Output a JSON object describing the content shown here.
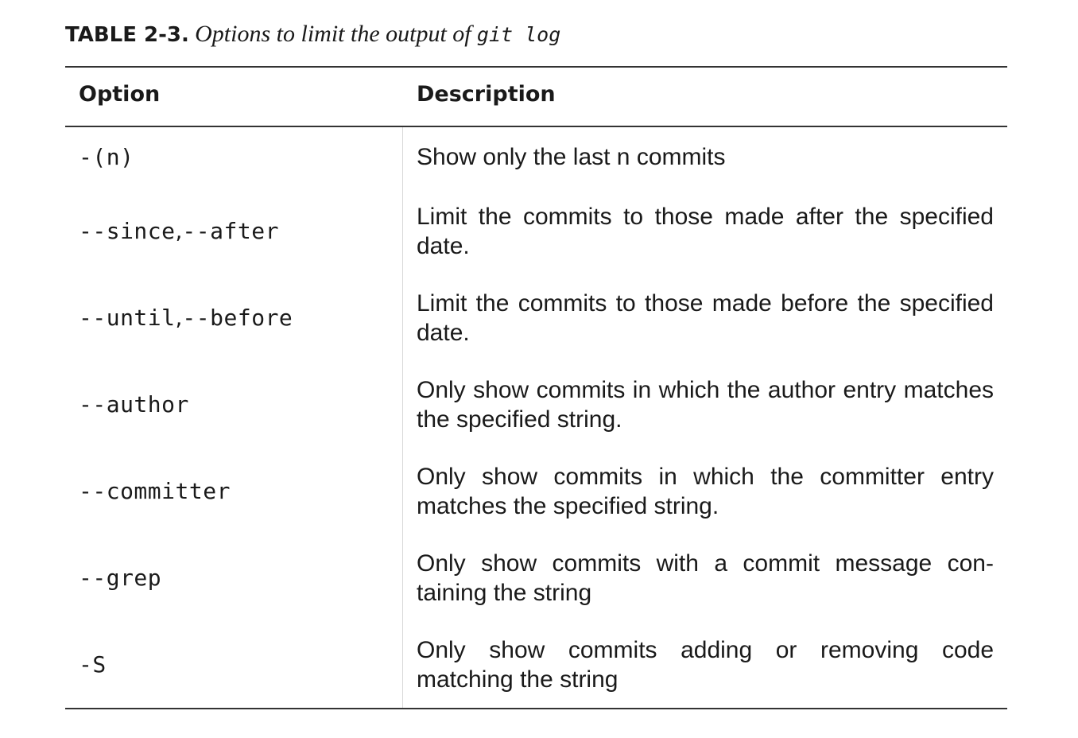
{
  "caption": {
    "label": "TABLE 2-3.",
    "title": "Options to limit the output of",
    "code": "git log"
  },
  "table": {
    "headers": {
      "option": "Option",
      "description": "Description"
    },
    "rows": [
      {
        "options": [
          "-(n)"
        ],
        "description": "Show only the last n commits"
      },
      {
        "options": [
          "--since",
          "--after"
        ],
        "description": "Limit the commits to those made after the speci­fied date."
      },
      {
        "options": [
          "--until",
          "--before"
        ],
        "description": "Limit the commits to those made before the speci­fied date."
      },
      {
        "options": [
          "--author"
        ],
        "description": "Only show commits in which the author entry matches the specified string."
      },
      {
        "options": [
          "--committer"
        ],
        "description": "Only show commits in which the committer entry matches the specified string."
      },
      {
        "options": [
          "--grep"
        ],
        "description": "Only show commits with a commit message con­taining the string"
      },
      {
        "options": [
          "-S"
        ],
        "description": "Only show commits adding or removing code matching the string"
      }
    ],
    "option_separator": ", "
  }
}
